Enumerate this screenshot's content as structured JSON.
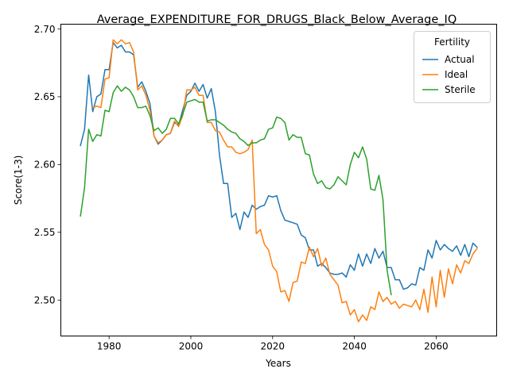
{
  "chart_data": {
    "type": "line",
    "title": "Average_EXPENDITURE_FOR_DRUGS_Black_Below_Average_IQ",
    "xlabel": "Years",
    "ylabel": "Score(1-3)",
    "xlim": [
      1968.2,
      2074.8
    ],
    "ylim": [
      2.4735,
      2.7035
    ],
    "xticks": [
      1980,
      2000,
      2020,
      2040,
      2060
    ],
    "yticks": [
      2.5,
      2.55,
      2.6,
      2.65,
      2.7
    ],
    "xtick_labels": [
      "1980",
      "2000",
      "2020",
      "2040",
      "2060"
    ],
    "ytick_labels": [
      "2.50",
      "2.55",
      "2.60",
      "2.65",
      "2.70"
    ],
    "legend": {
      "title": "Fertility",
      "position": "top-right"
    },
    "series": [
      {
        "name": "Actual",
        "color": "#1f77b4",
        "points": [
          [
            1973,
            2.614
          ],
          [
            1974,
            2.626
          ],
          [
            1975,
            2.666
          ],
          [
            1976,
            2.639
          ],
          [
            1977,
            2.65
          ],
          [
            1978,
            2.652
          ],
          [
            1979,
            2.67
          ],
          [
            1980,
            2.67
          ],
          [
            1981,
            2.69
          ],
          [
            1982,
            2.686
          ],
          [
            1983,
            2.688
          ],
          [
            1984,
            2.683
          ],
          [
            1985,
            2.683
          ],
          [
            1986,
            2.681
          ],
          [
            1987,
            2.657
          ],
          [
            1988,
            2.661
          ],
          [
            1989,
            2.654
          ],
          [
            1990,
            2.645
          ],
          [
            1991,
            2.621
          ],
          [
            1992,
            2.615
          ],
          [
            1993,
            2.618
          ],
          [
            1994,
            2.622
          ],
          [
            1995,
            2.623
          ],
          [
            1996,
            2.631
          ],
          [
            1997,
            2.629
          ],
          [
            1998,
            2.64
          ],
          [
            1999,
            2.651
          ],
          [
            2000,
            2.654
          ],
          [
            2001,
            2.66
          ],
          [
            2002,
            2.654
          ],
          [
            2003,
            2.659
          ],
          [
            2004,
            2.649
          ],
          [
            2005,
            2.656
          ],
          [
            2006,
            2.639
          ],
          [
            2007,
            2.607
          ],
          [
            2008,
            2.586
          ],
          [
            2009,
            2.586
          ],
          [
            2010,
            2.561
          ],
          [
            2011,
            2.564
          ],
          [
            2012,
            2.552
          ],
          [
            2013,
            2.565
          ],
          [
            2014,
            2.561
          ],
          [
            2015,
            2.57
          ],
          [
            2016,
            2.567
          ],
          [
            2017,
            2.569
          ],
          [
            2018,
            2.57
          ],
          [
            2019,
            2.577
          ],
          [
            2020,
            2.576
          ],
          [
            2021,
            2.577
          ],
          [
            2022,
            2.566
          ],
          [
            2023,
            2.559
          ],
          [
            2024,
            2.558
          ],
          [
            2025,
            2.557
          ],
          [
            2026,
            2.556
          ],
          [
            2027,
            2.548
          ],
          [
            2028,
            2.546
          ],
          [
            2029,
            2.537
          ],
          [
            2030,
            2.537
          ],
          [
            2031,
            2.525
          ],
          [
            2032,
            2.527
          ],
          [
            2033,
            2.524
          ],
          [
            2034,
            2.52
          ],
          [
            2035,
            2.519
          ],
          [
            2036,
            2.519
          ],
          [
            2037,
            2.52
          ],
          [
            2038,
            2.517
          ],
          [
            2039,
            2.526
          ],
          [
            2040,
            2.522
          ],
          [
            2041,
            2.534
          ],
          [
            2042,
            2.525
          ],
          [
            2043,
            2.534
          ],
          [
            2044,
            2.527
          ],
          [
            2045,
            2.538
          ],
          [
            2046,
            2.531
          ],
          [
            2047,
            2.536
          ],
          [
            2048,
            2.524
          ],
          [
            2049,
            2.524
          ],
          [
            2050,
            2.515
          ],
          [
            2051,
            2.515
          ],
          [
            2052,
            2.508
          ],
          [
            2053,
            2.509
          ],
          [
            2054,
            2.512
          ],
          [
            2055,
            2.511
          ],
          [
            2056,
            2.524
          ],
          [
            2057,
            2.522
          ],
          [
            2058,
            2.537
          ],
          [
            2059,
            2.531
          ],
          [
            2060,
            2.544
          ],
          [
            2061,
            2.537
          ],
          [
            2062,
            2.541
          ],
          [
            2063,
            2.538
          ],
          [
            2064,
            2.536
          ],
          [
            2065,
            2.54
          ],
          [
            2066,
            2.533
          ],
          [
            2067,
            2.541
          ],
          [
            2068,
            2.532
          ],
          [
            2069,
            2.542
          ],
          [
            2070,
            2.539
          ]
        ]
      },
      {
        "name": "Ideal",
        "color": "#ff7f0e",
        "points": [
          [
            1976,
            2.642
          ],
          [
            1977,
            2.643
          ],
          [
            1978,
            2.642
          ],
          [
            1979,
            2.663
          ],
          [
            1980,
            2.664
          ],
          [
            1981,
            2.692
          ],
          [
            1982,
            2.689
          ],
          [
            1983,
            2.692
          ],
          [
            1984,
            2.689
          ],
          [
            1985,
            2.69
          ],
          [
            1986,
            2.683
          ],
          [
            1987,
            2.655
          ],
          [
            1988,
            2.658
          ],
          [
            1989,
            2.651
          ],
          [
            1990,
            2.64
          ],
          [
            1991,
            2.621
          ],
          [
            1992,
            2.616
          ],
          [
            1993,
            2.618
          ],
          [
            1994,
            2.622
          ],
          [
            1995,
            2.623
          ],
          [
            1996,
            2.632
          ],
          [
            1997,
            2.628
          ],
          [
            1998,
            2.636
          ],
          [
            1999,
            2.655
          ],
          [
            2000,
            2.655
          ],
          [
            2001,
            2.657
          ],
          [
            2002,
            2.651
          ],
          [
            2003,
            2.651
          ],
          [
            2004,
            2.631
          ],
          [
            2005,
            2.631
          ],
          [
            2006,
            2.625
          ],
          [
            2007,
            2.624
          ],
          [
            2008,
            2.618
          ],
          [
            2009,
            2.613
          ],
          [
            2010,
            2.613
          ],
          [
            2011,
            2.609
          ],
          [
            2012,
            2.608
          ],
          [
            2013,
            2.609
          ],
          [
            2014,
            2.611
          ],
          [
            2015,
            2.618
          ],
          [
            2016,
            2.549
          ],
          [
            2017,
            2.552
          ],
          [
            2018,
            2.541
          ],
          [
            2019,
            2.537
          ],
          [
            2020,
            2.525
          ],
          [
            2021,
            2.521
          ],
          [
            2022,
            2.506
          ],
          [
            2023,
            2.507
          ],
          [
            2024,
            2.499
          ],
          [
            2025,
            2.513
          ],
          [
            2026,
            2.514
          ],
          [
            2027,
            2.528
          ],
          [
            2028,
            2.527
          ],
          [
            2029,
            2.539
          ],
          [
            2030,
            2.532
          ],
          [
            2031,
            2.538
          ],
          [
            2032,
            2.525
          ],
          [
            2033,
            2.531
          ],
          [
            2034,
            2.519
          ],
          [
            2035,
            2.515
          ],
          [
            2036,
            2.511
          ],
          [
            2037,
            2.498
          ],
          [
            2038,
            2.499
          ],
          [
            2039,
            2.489
          ],
          [
            2040,
            2.493
          ],
          [
            2041,
            2.484
          ],
          [
            2042,
            2.489
          ],
          [
            2043,
            2.485
          ],
          [
            2044,
            2.495
          ],
          [
            2045,
            2.493
          ],
          [
            2046,
            2.506
          ],
          [
            2047,
            2.499
          ],
          [
            2048,
            2.502
          ],
          [
            2049,
            2.497
          ],
          [
            2050,
            2.499
          ],
          [
            2051,
            2.494
          ],
          [
            2052,
            2.497
          ],
          [
            2053,
            2.496
          ],
          [
            2054,
            2.495
          ],
          [
            2055,
            2.5
          ],
          [
            2056,
            2.493
          ],
          [
            2057,
            2.508
          ],
          [
            2058,
            2.491
          ],
          [
            2059,
            2.517
          ],
          [
            2060,
            2.495
          ],
          [
            2061,
            2.522
          ],
          [
            2062,
            2.502
          ],
          [
            2063,
            2.523
          ],
          [
            2064,
            2.512
          ],
          [
            2065,
            2.526
          ],
          [
            2066,
            2.52
          ],
          [
            2067,
            2.529
          ],
          [
            2068,
            2.527
          ],
          [
            2069,
            2.534
          ],
          [
            2070,
            2.538
          ]
        ]
      },
      {
        "name": "Sterile",
        "color": "#2ca02c",
        "points": [
          [
            1973,
            2.562
          ],
          [
            1974,
            2.583
          ],
          [
            1975,
            2.626
          ],
          [
            1976,
            2.617
          ],
          [
            1977,
            2.622
          ],
          [
            1978,
            2.621
          ],
          [
            1979,
            2.64
          ],
          [
            1980,
            2.639
          ],
          [
            1981,
            2.653
          ],
          [
            1982,
            2.658
          ],
          [
            1983,
            2.654
          ],
          [
            1984,
            2.657
          ],
          [
            1985,
            2.655
          ],
          [
            1986,
            2.65
          ],
          [
            1987,
            2.642
          ],
          [
            1988,
            2.642
          ],
          [
            1989,
            2.643
          ],
          [
            1990,
            2.636
          ],
          [
            1991,
            2.625
          ],
          [
            1992,
            2.627
          ],
          [
            1993,
            2.623
          ],
          [
            1994,
            2.626
          ],
          [
            1995,
            2.634
          ],
          [
            1996,
            2.634
          ],
          [
            1997,
            2.63
          ],
          [
            1998,
            2.637
          ],
          [
            1999,
            2.646
          ],
          [
            2000,
            2.647
          ],
          [
            2001,
            2.648
          ],
          [
            2002,
            2.646
          ],
          [
            2003,
            2.646
          ],
          [
            2004,
            2.632
          ],
          [
            2005,
            2.633
          ],
          [
            2006,
            2.633
          ],
          [
            2007,
            2.631
          ],
          [
            2008,
            2.629
          ],
          [
            2009,
            2.626
          ],
          [
            2010,
            2.624
          ],
          [
            2011,
            2.623
          ],
          [
            2012,
            2.619
          ],
          [
            2013,
            2.617
          ],
          [
            2014,
            2.614
          ],
          [
            2015,
            2.616
          ],
          [
            2016,
            2.616
          ],
          [
            2017,
            2.618
          ],
          [
            2018,
            2.619
          ],
          [
            2019,
            2.626
          ],
          [
            2020,
            2.627
          ],
          [
            2021,
            2.635
          ],
          [
            2022,
            2.634
          ],
          [
            2023,
            2.631
          ],
          [
            2024,
            2.618
          ],
          [
            2025,
            2.622
          ],
          [
            2026,
            2.62
          ],
          [
            2027,
            2.62
          ],
          [
            2028,
            2.608
          ],
          [
            2029,
            2.607
          ],
          [
            2030,
            2.593
          ],
          [
            2031,
            2.586
          ],
          [
            2032,
            2.588
          ],
          [
            2033,
            2.583
          ],
          [
            2034,
            2.582
          ],
          [
            2035,
            2.585
          ],
          [
            2036,
            2.591
          ],
          [
            2037,
            2.588
          ],
          [
            2038,
            2.585
          ],
          [
            2039,
            2.6
          ],
          [
            2040,
            2.609
          ],
          [
            2041,
            2.605
          ],
          [
            2042,
            2.613
          ],
          [
            2043,
            2.604
          ],
          [
            2044,
            2.582
          ],
          [
            2045,
            2.581
          ],
          [
            2046,
            2.592
          ],
          [
            2047,
            2.574
          ],
          [
            2048,
            2.522
          ],
          [
            2049,
            2.504
          ]
        ]
      }
    ]
  }
}
